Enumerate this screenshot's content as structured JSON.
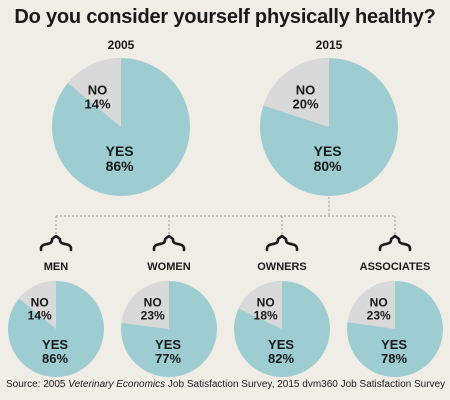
{
  "title": "Do you consider yourself physically healthy?",
  "source": {
    "prefix": "Source: 2005 ",
    "italic": "Veterinary Economics",
    "suffix": " Job Satisfaction Survey, 2015 dvm360 Job Satisfaction Survey"
  },
  "colors": {
    "yes": "#9dcdd1",
    "no": "#d9d9d9",
    "connector": "#a9a9a9",
    "background": "#f0ede7"
  },
  "chart_data": [
    {
      "type": "pie",
      "title": "2005",
      "slices": [
        {
          "label": "NO",
          "value": 14,
          "display": "14%"
        },
        {
          "label": "YES",
          "value": 86,
          "display": "86%"
        }
      ]
    },
    {
      "type": "pie",
      "title": "2015",
      "slices": [
        {
          "label": "NO",
          "value": 20,
          "display": "20%"
        },
        {
          "label": "YES",
          "value": 80,
          "display": "80%"
        }
      ]
    },
    {
      "type": "pie",
      "title": "MEN",
      "slices": [
        {
          "label": "NO",
          "value": 14,
          "display": "14%"
        },
        {
          "label": "YES",
          "value": 86,
          "display": "86%"
        }
      ]
    },
    {
      "type": "pie",
      "title": "WOMEN",
      "slices": [
        {
          "label": "NO",
          "value": 23,
          "display": "23%"
        },
        {
          "label": "YES",
          "value": 77,
          "display": "77%"
        }
      ]
    },
    {
      "type": "pie",
      "title": "OWNERS",
      "slices": [
        {
          "label": "NO",
          "value": 18,
          "display": "18%"
        },
        {
          "label": "YES",
          "value": 82,
          "display": "82%"
        }
      ]
    },
    {
      "type": "pie",
      "title": "ASSOCIATES",
      "slices": [
        {
          "label": "NO",
          "value": 23,
          "display": "23%"
        },
        {
          "label": "YES",
          "value": 78,
          "display": "78%"
        }
      ]
    }
  ]
}
